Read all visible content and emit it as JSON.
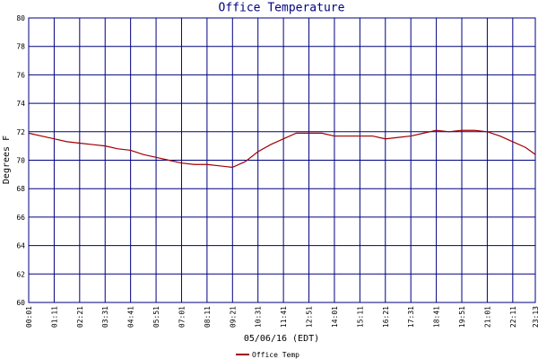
{
  "chart_data": {
    "type": "line",
    "title": "Office Temperature",
    "y_label": "Degrees F",
    "x_label": "05/06/16 (EDT)",
    "x": [
      1,
      36,
      71,
      106,
      141,
      176,
      211,
      246,
      281,
      316,
      351,
      386,
      421,
      456,
      491,
      526,
      561,
      596,
      631,
      666,
      701,
      736,
      771,
      806,
      841,
      876,
      911,
      946,
      981,
      1016,
      1051,
      1086,
      1121,
      1156,
      1191,
      1226,
      1261,
      1296,
      1331,
      1366,
      1393
    ],
    "series": [
      {
        "name": "Office Temp",
        "color": "#a00000",
        "values": [
          71.9,
          71.7,
          71.5,
          71.3,
          71.2,
          71.1,
          71.0,
          70.8,
          70.7,
          70.4,
          70.2,
          70.0,
          69.8,
          69.7,
          69.7,
          69.6,
          69.5,
          69.9,
          70.6,
          71.1,
          71.5,
          71.9,
          71.9,
          71.9,
          71.7,
          71.7,
          71.7,
          71.7,
          71.5,
          71.6,
          71.7,
          71.9,
          72.1,
          72.0,
          72.1,
          72.1,
          72.0,
          71.7,
          71.3,
          70.9,
          70.4
        ]
      }
    ],
    "xlim": [
      1,
      1393
    ],
    "xticks": [
      {
        "value": 1,
        "label": "00:01"
      },
      {
        "value": 71,
        "label": "01:11"
      },
      {
        "value": 141,
        "label": "02:21"
      },
      {
        "value": 211,
        "label": "03:31"
      },
      {
        "value": 281,
        "label": "04:41"
      },
      {
        "value": 351,
        "label": "05:51"
      },
      {
        "value": 421,
        "label": "07:01"
      },
      {
        "value": 491,
        "label": "08:11"
      },
      {
        "value": 561,
        "label": "09:21"
      },
      {
        "value": 631,
        "label": "10:31"
      },
      {
        "value": 701,
        "label": "11:41"
      },
      {
        "value": 771,
        "label": "12:51"
      },
      {
        "value": 841,
        "label": "14:01"
      },
      {
        "value": 911,
        "label": "15:11"
      },
      {
        "value": 981,
        "label": "16:21"
      },
      {
        "value": 1051,
        "label": "17:31"
      },
      {
        "value": 1121,
        "label": "18:41"
      },
      {
        "value": 1191,
        "label": "19:51"
      },
      {
        "value": 1261,
        "label": "21:01"
      },
      {
        "value": 1331,
        "label": "22:11"
      },
      {
        "value": 1393,
        "label": "23:13"
      }
    ],
    "ylim": [
      60,
      80
    ],
    "yticks": [
      {
        "value": 60,
        "label": "60"
      },
      {
        "value": 62,
        "label": "62"
      },
      {
        "value": 64,
        "label": "64"
      },
      {
        "value": 66,
        "label": "66"
      },
      {
        "value": 68,
        "label": "68"
      },
      {
        "value": 70,
        "label": "70"
      },
      {
        "value": 72,
        "label": "72"
      },
      {
        "value": 74,
        "label": "74"
      },
      {
        "value": 76,
        "label": "76"
      },
      {
        "value": 78,
        "label": "78"
      },
      {
        "value": 80,
        "label": "80"
      }
    ],
    "grid": true,
    "grid_color": "#000080",
    "legend": "bottom"
  }
}
